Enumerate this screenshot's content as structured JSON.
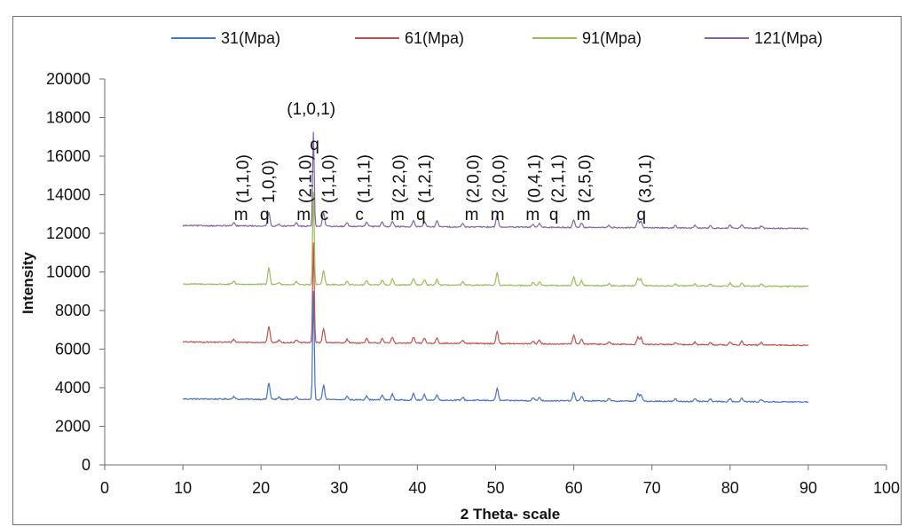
{
  "chart_data": {
    "type": "line",
    "title": "",
    "xlabel": "2 Theta- scale",
    "ylabel": "Intensity",
    "xlim": [
      0,
      100
    ],
    "ylim": [
      0,
      20000
    ],
    "xticks": [
      "0",
      "10",
      "20",
      "30",
      "40",
      "50",
      "60",
      "70",
      "80",
      "90",
      "100"
    ],
    "yticks": [
      "0",
      "2000",
      "4000",
      "6000",
      "8000",
      "10000",
      "12000",
      "14000",
      "16000",
      "18000",
      "20000"
    ],
    "grid": false,
    "legend_position": "top",
    "series": [
      {
        "name": "31(Mpa)",
        "color": "#4472C4",
        "baseline_start": 3420,
        "baseline_end": 3260,
        "peaks": [
          [
            16.5,
            150
          ],
          [
            21.0,
            850
          ],
          [
            22.3,
            120
          ],
          [
            24.5,
            150
          ],
          [
            26.7,
            5600
          ],
          [
            28.0,
            750
          ],
          [
            31.0,
            180
          ],
          [
            33.5,
            220
          ],
          [
            35.5,
            250
          ],
          [
            36.8,
            300
          ],
          [
            39.5,
            320
          ],
          [
            40.9,
            280
          ],
          [
            42.5,
            300
          ],
          [
            45.8,
            160
          ],
          [
            50.2,
            650
          ],
          [
            54.8,
            150
          ],
          [
            55.6,
            180
          ],
          [
            60.0,
            450
          ],
          [
            61.0,
            250
          ],
          [
            64.5,
            120
          ],
          [
            68.2,
            380
          ],
          [
            68.6,
            350
          ],
          [
            73.0,
            120
          ],
          [
            75.5,
            130
          ],
          [
            77.5,
            110
          ],
          [
            80.0,
            160
          ],
          [
            81.5,
            180
          ],
          [
            84.0,
            120
          ]
        ]
      },
      {
        "name": "61(Mpa)",
        "color": "#C0504D",
        "baseline_start": 6370,
        "baseline_end": 6200,
        "peaks": [
          [
            16.5,
            150
          ],
          [
            21.0,
            850
          ],
          [
            22.3,
            120
          ],
          [
            24.5,
            150
          ],
          [
            26.7,
            5200
          ],
          [
            28.0,
            750
          ],
          [
            31.0,
            180
          ],
          [
            33.5,
            220
          ],
          [
            35.5,
            250
          ],
          [
            36.8,
            300
          ],
          [
            39.5,
            320
          ],
          [
            40.9,
            280
          ],
          [
            42.5,
            300
          ],
          [
            45.8,
            160
          ],
          [
            50.2,
            650
          ],
          [
            54.8,
            150
          ],
          [
            55.6,
            180
          ],
          [
            60.0,
            450
          ],
          [
            61.0,
            250
          ],
          [
            64.5,
            120
          ],
          [
            68.2,
            380
          ],
          [
            68.6,
            350
          ],
          [
            73.0,
            120
          ],
          [
            75.5,
            130
          ],
          [
            77.5,
            110
          ],
          [
            80.0,
            160
          ],
          [
            81.5,
            180
          ],
          [
            84.0,
            120
          ]
        ]
      },
      {
        "name": "91(Mpa)",
        "color": "#9BBB59",
        "baseline_start": 9370,
        "baseline_end": 9250,
        "peaks": [
          [
            16.5,
            150
          ],
          [
            21.0,
            850
          ],
          [
            22.3,
            120
          ],
          [
            24.5,
            150
          ],
          [
            26.7,
            4800
          ],
          [
            28.0,
            750
          ],
          [
            31.0,
            180
          ],
          [
            33.5,
            220
          ],
          [
            35.5,
            250
          ],
          [
            36.8,
            300
          ],
          [
            39.5,
            320
          ],
          [
            40.9,
            280
          ],
          [
            42.5,
            300
          ],
          [
            45.8,
            160
          ],
          [
            50.2,
            650
          ],
          [
            54.8,
            150
          ],
          [
            55.6,
            180
          ],
          [
            60.0,
            450
          ],
          [
            61.0,
            250
          ],
          [
            64.5,
            120
          ],
          [
            68.2,
            380
          ],
          [
            68.6,
            350
          ],
          [
            73.0,
            120
          ],
          [
            75.5,
            130
          ],
          [
            77.5,
            110
          ],
          [
            80.0,
            160
          ],
          [
            81.5,
            180
          ],
          [
            84.0,
            120
          ]
        ]
      },
      {
        "name": "121(Mpa)",
        "color": "#8064A2",
        "baseline_start": 12400,
        "baseline_end": 12250,
        "peaks": [
          [
            16.5,
            150
          ],
          [
            21.0,
            700
          ],
          [
            22.3,
            120
          ],
          [
            24.5,
            180
          ],
          [
            26.7,
            4900
          ],
          [
            28.0,
            700
          ],
          [
            31.0,
            180
          ],
          [
            33.5,
            220
          ],
          [
            35.5,
            250
          ],
          [
            36.8,
            300
          ],
          [
            39.5,
            320
          ],
          [
            40.9,
            280
          ],
          [
            42.5,
            300
          ],
          [
            45.8,
            160
          ],
          [
            50.2,
            650
          ],
          [
            54.8,
            150
          ],
          [
            55.6,
            180
          ],
          [
            60.0,
            400
          ],
          [
            61.0,
            250
          ],
          [
            64.5,
            120
          ],
          [
            68.2,
            380
          ],
          [
            68.6,
            350
          ],
          [
            73.0,
            120
          ],
          [
            75.5,
            130
          ],
          [
            77.5,
            110
          ],
          [
            80.0,
            160
          ],
          [
            81.5,
            180
          ],
          [
            84.0,
            120
          ]
        ]
      }
    ],
    "annotations": [
      {
        "x": 17.0,
        "phase": "m",
        "miller": "(1,1,0)",
        "kind": "rotated"
      },
      {
        "x": 20.3,
        "phase": "q",
        "miller": "1,0,0)",
        "kind": "rotated"
      },
      {
        "x": 25.0,
        "phase": "m",
        "miller": "(2,1,0)",
        "kind": "rotated"
      },
      {
        "x": 26.7,
        "phase": "q",
        "miller": "(1,0,1)",
        "kind": "horizontal"
      },
      {
        "x": 28.0,
        "phase": "c",
        "miller": "(1,1,0)",
        "kind": "rotated"
      },
      {
        "x": 32.5,
        "phase": "c",
        "miller": "(1,1,1)",
        "kind": "rotated"
      },
      {
        "x": 37.0,
        "phase": "m",
        "miller": "(2,2,0)",
        "kind": "rotated"
      },
      {
        "x": 40.3,
        "phase": "q",
        "miller": "(1,2,1)",
        "kind": "rotated"
      },
      {
        "x": 46.5,
        "phase": "m",
        "miller": "(2,0,0)",
        "kind": "rotated"
      },
      {
        "x": 49.8,
        "phase": "m",
        "miller": "(2,0,0)",
        "kind": "rotated"
      },
      {
        "x": 54.3,
        "phase": "m",
        "miller": "(0,4,1)",
        "kind": "rotated"
      },
      {
        "x": 57.3,
        "phase": "q",
        "miller": "(2,1,1)",
        "kind": "rotated"
      },
      {
        "x": 60.8,
        "phase": "m",
        "miller": "(2,5,0)",
        "kind": "rotated"
      },
      {
        "x": 68.5,
        "phase": "q",
        "miller": "(3,0,1)",
        "kind": "rotated"
      }
    ]
  }
}
